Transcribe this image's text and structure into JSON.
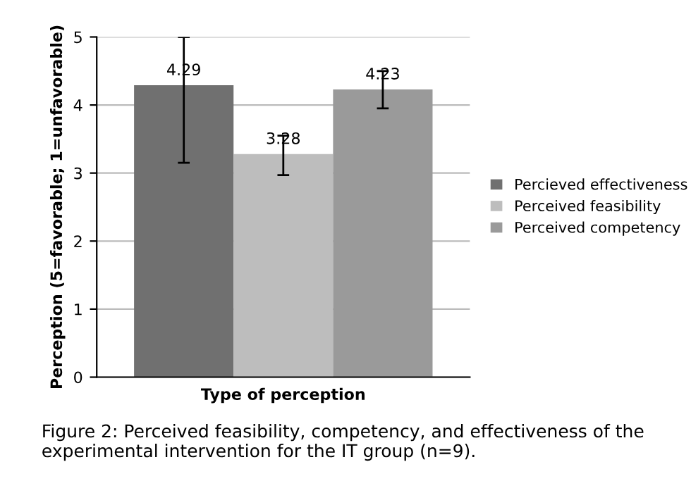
{
  "chart_data": {
    "type": "bar",
    "categories": [
      null
    ],
    "xlabel": "Type of perception",
    "ylabel": "Perception (5=favorable; 1=unfavorable)",
    "series": [
      {
        "name": "Percieved effectiveness",
        "color": "#707070",
        "values": [
          4.29
        ],
        "errors": [
          [
            3.15,
            5
          ]
        ]
      },
      {
        "name": "Perceived feasibility",
        "color": "#bdbdbd",
        "values": [
          3.28
        ],
        "errors": [
          [
            2.97,
            3.55
          ]
        ]
      },
      {
        "name": "Perceived competency",
        "color": "#9a9a9a",
        "values": [
          4.23
        ],
        "errors": [
          [
            3.95,
            4.5
          ]
        ]
      }
    ],
    "ylim": [
      0,
      5
    ],
    "yticks": [
      0,
      1,
      2,
      3,
      4,
      5
    ],
    "grid": "y",
    "legend": "right",
    "data_labels": true,
    "annotations": [
      "Figure 2: Perceived feasibility, competency, and effectiveness of the experimental intervention for the IT group (n=9)."
    ]
  }
}
